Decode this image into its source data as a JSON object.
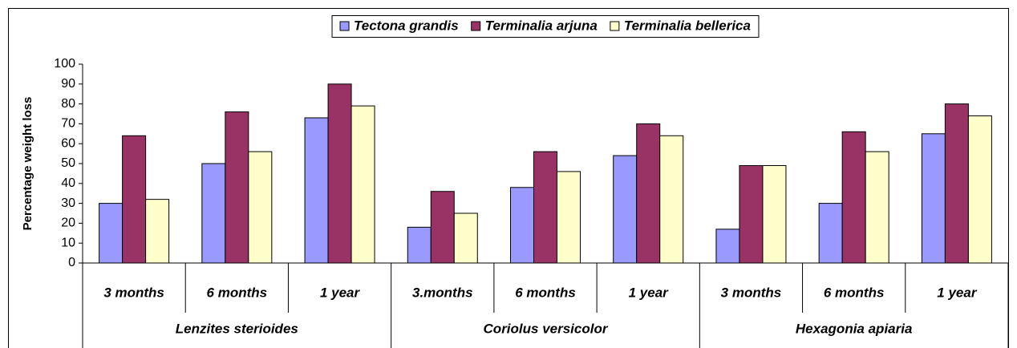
{
  "chart_data": {
    "type": "bar",
    "ylabel": "Percentage weight loss",
    "categories": [
      "3 months",
      "6 months",
      "1 year",
      "3.months",
      "6 months",
      "1 year",
      "3 months",
      "6 months",
      "1 year"
    ],
    "category_groups": [
      "Lenzites sterioides",
      "Coriolus versicolor",
      "Hexagonia apiaria"
    ],
    "series": [
      {
        "name": "Tectona grandis",
        "color": "#9999ff",
        "values": [
          30,
          50,
          73,
          18,
          38,
          54,
          17,
          30,
          65
        ]
      },
      {
        "name": "Terminalia arjuna",
        "color": "#993366",
        "values": [
          64,
          76,
          90,
          36,
          56,
          70,
          49,
          66,
          80
        ]
      },
      {
        "name": "Terminalia bellerica",
        "color": "#ffffcc",
        "values": [
          32,
          56,
          79,
          25,
          46,
          64,
          49,
          56,
          74
        ]
      }
    ],
    "ylim": [
      0,
      100
    ],
    "yticks": [
      0,
      10,
      20,
      30,
      40,
      50,
      60,
      70,
      80,
      90,
      100
    ],
    "grid": false,
    "legend": "top"
  }
}
